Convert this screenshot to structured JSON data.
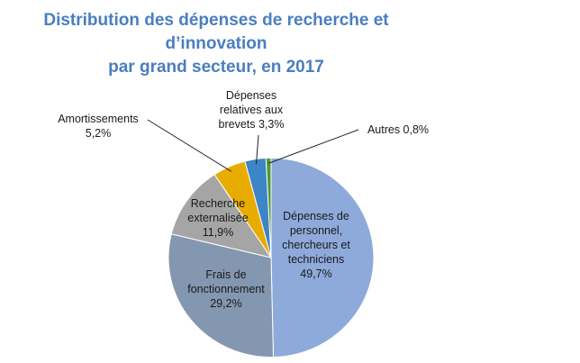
{
  "chart_data": {
    "type": "pie",
    "title_lines": [
      "Distribution des dépenses de recherche et",
      "d’innovation",
      "par grand secteur, en 2017"
    ],
    "slices": [
      {
        "key": "personnel",
        "value": 49.7,
        "color": "#8eaadb",
        "label_lines": [
          "Dépenses de",
          "personnel,",
          "chercheurs et",
          "techniciens",
          "49,7%"
        ]
      },
      {
        "key": "fonctionnement",
        "value": 29.2,
        "color": "#8497b0",
        "label_lines": [
          "Frais de",
          "fonctionnement",
          "29,2%"
        ]
      },
      {
        "key": "recherche-externalisee",
        "value": 11.9,
        "color": "#a5a5a5",
        "label_lines": [
          "Recherche",
          "externalisée",
          "11,9%"
        ]
      },
      {
        "key": "amortissements",
        "value": 5.2,
        "color": "#e8ac00",
        "label_lines": [
          "Amortissements",
          "5,2%"
        ]
      },
      {
        "key": "brevets",
        "value": 3.3,
        "color": "#3d85c6",
        "label_lines": [
          "Dépenses",
          "relatives aux",
          "brevets 3,3%"
        ]
      },
      {
        "key": "autres",
        "value": 0.8,
        "color": "#4e9a35",
        "label_lines": [
          "Autres 0,8%"
        ]
      }
    ]
  }
}
